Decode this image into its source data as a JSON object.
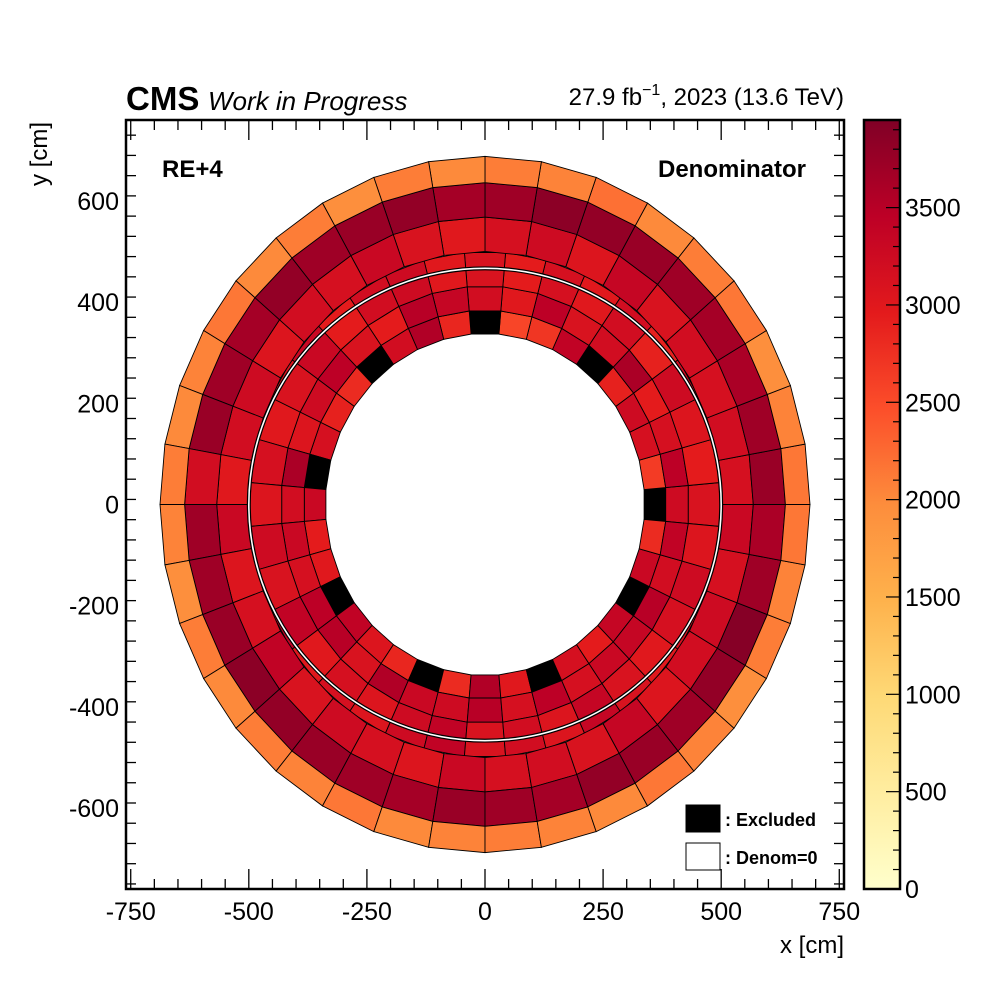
{
  "header": {
    "experiment": "CMS",
    "status": "Work in Progress",
    "lumi_prefix": "27.9 fb",
    "lumi_exp": "−1",
    "lumi_suffix": ", 2023 (13.6 TeV)"
  },
  "chart_data": {
    "type": "heatmap",
    "title": "",
    "station_label": "RE+4",
    "quantity_label": "Denominator",
    "xlabel": "x [cm]",
    "ylabel": "y [cm]",
    "xlim": [
      -760,
      760
    ],
    "ylim": [
      -760,
      760
    ],
    "x_ticks": [
      -750,
      -500,
      -250,
      0,
      250,
      500,
      750
    ],
    "y_ticks": [
      -600,
      -400,
      -200,
      0,
      200,
      400,
      600
    ],
    "x_tick_labels": [
      "-750",
      "-500",
      "-250",
      "0",
      "250",
      "500",
      "750"
    ],
    "y_tick_labels": [
      "-600",
      "-400",
      "-200",
      "0",
      "200",
      "400",
      "600"
    ],
    "colorbar": {
      "zlim": [
        0,
        3950
      ],
      "ticks": [
        0,
        500,
        1000,
        1500,
        2000,
        2500,
        3000,
        3500
      ],
      "tick_labels": [
        "0",
        "500",
        "1000",
        "1500",
        "2000",
        "2500",
        "3000",
        "3500"
      ],
      "palette": [
        "#ffffcc",
        "#ffeda0",
        "#fed976",
        "#feb24c",
        "#fd8d3c",
        "#fc4e2a",
        "#e31a1c",
        "#bd0026",
        "#800026"
      ]
    },
    "legend": {
      "position": "bottom-right",
      "entries": [
        {
          "label": ": Excluded",
          "color": "#000000"
        },
        {
          "label": ": Denom=0",
          "color": "#ffffff"
        }
      ]
    },
    "ring_boundaries_cm": [
      338,
      384,
      432,
      500,
      568,
      636,
      688
    ],
    "sector_boundary_note": "outer chamber ring: 36 sectors of 10 degrees; inner chamber ring: 36 sectors of 10 degrees, rotated by 5 degrees",
    "inner_chamber_sector_start_deg": -5,
    "outer_chamber_sector_start_deg": 0,
    "sector_order": "counter-clockwise from the sector start angle",
    "values": {
      "inner_r1": [
        "X",
        2650,
        3150,
        3250,
        2900,
        "X",
        3400,
        2700,
        2550,
        "X",
        2850,
        3550,
        3200,
        "X",
        2800,
        2900,
        3150,
        "X",
        3300,
        2950,
        3000,
        "X",
        3400,
        3050,
        2850,
        "X",
        2800,
        3550,
        3000,
        "X",
        3150,
        2950,
        3350,
        "X",
        3300,
        2800
      ],
      "inner_r2": [
        3250,
        3450,
        3150,
        2950,
        3600,
        3200,
        3100,
        3450,
        3000,
        3200,
        3350,
        3500,
        2950,
        3100,
        3450,
        3250,
        3050,
        3600,
        3200,
        3300,
        3150,
        3450,
        3500,
        3100,
        3550,
        3300,
        3250,
        3500,
        3150,
        3450,
        3150,
        3300,
        3350,
        3500,
        3200,
        3400
      ],
      "inner_r3": [
        3100,
        2950,
        3050,
        3250,
        2900,
        3200,
        3000,
        3150,
        2950,
        3100,
        3000,
        3250,
        3200,
        2950,
        3300,
        3100,
        3000,
        3150,
        3050,
        3250,
        3100,
        3400,
        3000,
        3150,
        3050,
        3250,
        3400,
        3100,
        3200,
        3050,
        3350,
        3100,
        3000,
        3150,
        3250,
        3050
      ],
      "outer_r1": [
        3150,
        3200,
        3150,
        3200,
        3100,
        3350,
        3050,
        3250,
        3150,
        3000,
        3100,
        3300,
        3150,
        3200,
        3050,
        3250,
        3200,
        3000,
        3300,
        3050,
        3150,
        3400,
        3100,
        3250,
        3150,
        3050,
        3300,
        3150,
        3200,
        3100,
        3350,
        3050,
        3200,
        3250,
        3150,
        3300
      ],
      "outer_r2": [
        3750,
        3700,
        3600,
        3650,
        3700,
        3750,
        3800,
        3850,
        3700,
        3650,
        3800,
        3750,
        3700,
        3800,
        3650,
        3700,
        3750,
        3200,
        3700,
        3700,
        3750,
        3850,
        3800,
        3750,
        3700,
        3650,
        3750,
        3700,
        3650,
        3800,
        3750,
        3700,
        3800,
        3900,
        3700,
        3600
      ],
      "outer_r3": [
        2150,
        2050,
        1950,
        2150,
        2100,
        2000,
        2200,
        2050,
        2100,
        2000,
        2100,
        1950,
        2100,
        2000,
        2150,
        2050,
        2000,
        2100,
        2050,
        1950,
        2100,
        2000,
        2100,
        2050,
        2150,
        2000,
        2050,
        2100,
        2050,
        2000,
        2150,
        2050,
        1950,
        2100,
        2050,
        2150
      ]
    }
  }
}
